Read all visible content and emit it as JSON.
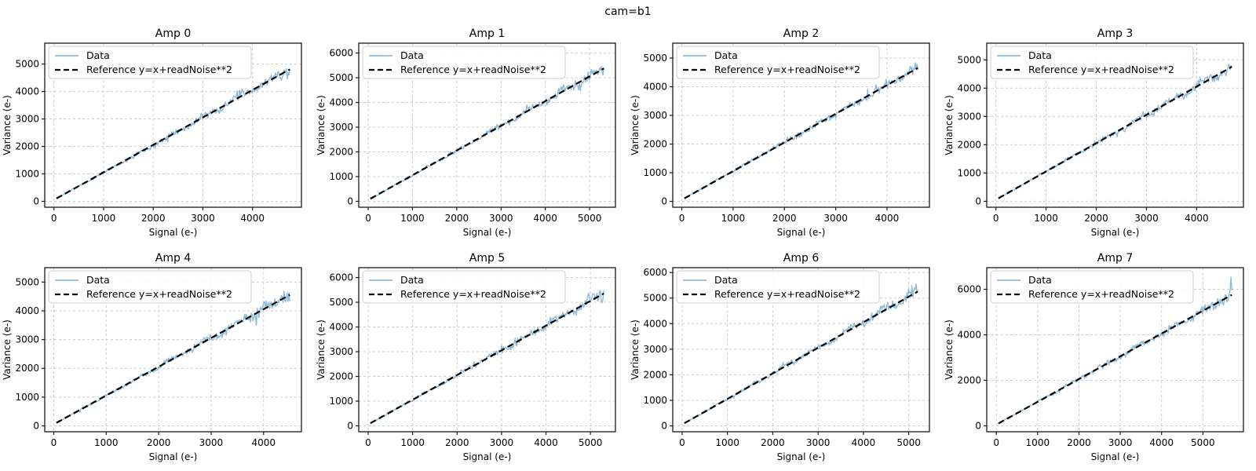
{
  "figure": {
    "suptitle": "cam=b1",
    "background": "#ffffff"
  },
  "style": {
    "data_color": "#1f77b4",
    "data_alpha": 0.5,
    "ref_color": "#000000",
    "grid_color": "#cccccc",
    "spine_color": "#1a1a1a",
    "legend_border": "#cccccc",
    "legend_bg": "rgba(255,255,255,0.85)",
    "text_color": "#000000"
  },
  "chart_data": {
    "type": "line",
    "layout": {
      "rows": 2,
      "cols": 4,
      "grid": true,
      "grid_linestyle": "dashed",
      "legend_position": "upper left"
    },
    "shared": {
      "xlabel": "Signal (e-)",
      "ylabel": "Variance (e-)",
      "legend": [
        "Data",
        "Reference y=x+readNoise**2"
      ],
      "read_noise_sq": 55,
      "reference_relation": "y = x + readNoise**2",
      "data_trend": "variance rises linearly with signal; noise envelope grows with signal"
    },
    "charts": [
      {
        "title": "Amp 0",
        "x_start": 50,
        "x_end": 4750,
        "y_max": 5480,
        "xlim": [
          -185,
          4985
        ],
        "ylim": [
          -215,
          5760
        ],
        "xticks": [
          0,
          1000,
          2000,
          3000,
          4000
        ],
        "yticks": [
          0,
          1000,
          2000,
          3000,
          4000,
          5000
        ],
        "seed": 11,
        "noise_frac": 0.055
      },
      {
        "title": "Amp 1",
        "x_start": 50,
        "x_end": 5320,
        "y_max": 6100,
        "xlim": [
          -213,
          5583
        ],
        "ylim": [
          -240,
          6400
        ],
        "xticks": [
          0,
          1000,
          2000,
          3000,
          4000,
          5000
        ],
        "yticks": [
          0,
          1000,
          2000,
          3000,
          4000,
          5000,
          6000
        ],
        "seed": 22,
        "noise_frac": 0.055
      },
      {
        "title": "Amp 2",
        "x_start": 50,
        "x_end": 4600,
        "y_max": 5260,
        "xlim": [
          -177,
          4827
        ],
        "ylim": [
          -205,
          5520
        ],
        "xticks": [
          0,
          1000,
          2000,
          3000,
          4000
        ],
        "yticks": [
          0,
          1000,
          2000,
          3000,
          4000,
          5000
        ],
        "seed": 33,
        "noise_frac": 0.058
      },
      {
        "title": "Amp 3",
        "x_start": 50,
        "x_end": 4700,
        "y_max": 5320,
        "xlim": [
          -182,
          4932
        ],
        "ylim": [
          -210,
          5590
        ],
        "xticks": [
          0,
          1000,
          2000,
          3000,
          4000
        ],
        "yticks": [
          0,
          1000,
          2000,
          3000,
          4000,
          5000
        ],
        "seed": 44,
        "noise_frac": 0.055
      },
      {
        "title": "Amp 4",
        "x_start": 50,
        "x_end": 4500,
        "y_max": 5230,
        "xlim": [
          -172,
          4722
        ],
        "ylim": [
          -205,
          5500
        ],
        "xticks": [
          0,
          1000,
          2000,
          3000,
          4000
        ],
        "yticks": [
          0,
          1000,
          2000,
          3000,
          4000,
          5000
        ],
        "seed": 55,
        "noise_frac": 0.06
      },
      {
        "title": "Amp 5",
        "x_start": 50,
        "x_end": 5300,
        "y_max": 6100,
        "xlim": [
          -212,
          5562
        ],
        "ylim": [
          -240,
          6400
        ],
        "xticks": [
          0,
          1000,
          2000,
          3000,
          4000,
          5000
        ],
        "yticks": [
          0,
          1000,
          2000,
          3000,
          4000,
          5000,
          6000
        ],
        "seed": 66,
        "noise_frac": 0.055
      },
      {
        "title": "Amp 6",
        "x_start": 50,
        "x_end": 5200,
        "y_max": 5900,
        "xlim": [
          -207,
          5457
        ],
        "ylim": [
          -230,
          6190
        ],
        "xticks": [
          0,
          1000,
          2000,
          3000,
          4000,
          5000
        ],
        "yticks": [
          0,
          1000,
          2000,
          3000,
          4000,
          5000,
          6000
        ],
        "seed": 77,
        "noise_frac": 0.057
      },
      {
        "title": "Amp 7",
        "x_start": 50,
        "x_end": 5700,
        "y_max": 6620,
        "xlim": [
          -232,
          5982
        ],
        "ylim": [
          -260,
          6950
        ],
        "xticks": [
          0,
          1000,
          2000,
          3000,
          4000,
          5000
        ],
        "yticks": [
          0,
          2000,
          4000,
          6000
        ],
        "seed": 88,
        "noise_frac": 0.055
      }
    ]
  }
}
